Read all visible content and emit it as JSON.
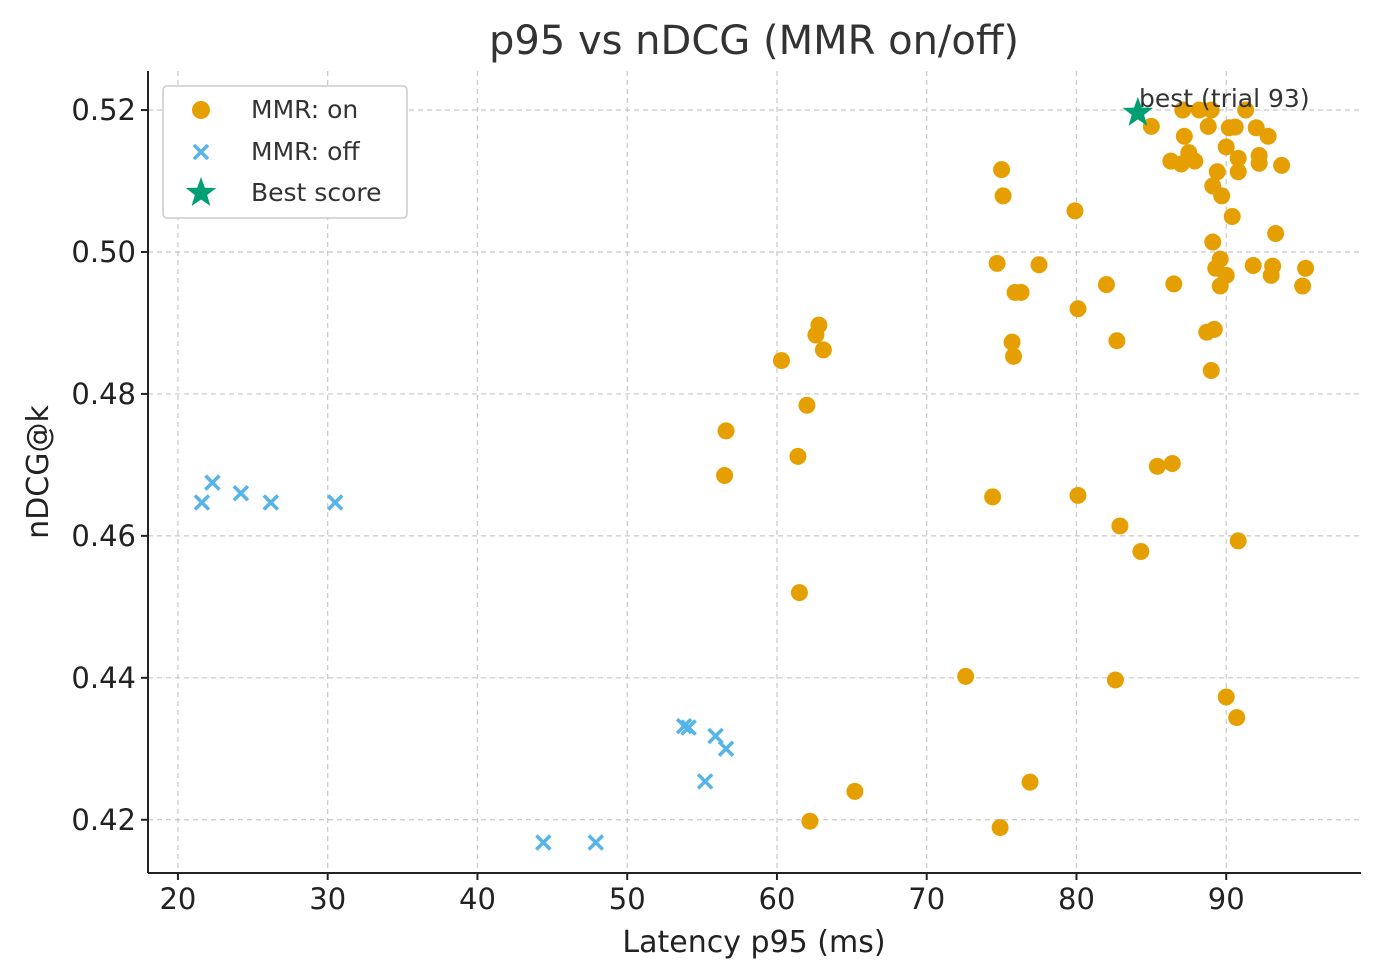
{
  "chart_data": {
    "type": "scatter",
    "title": "p95 vs nDCG (MMR on/off)",
    "xlabel": "Latency p95 (ms)",
    "ylabel": "nDCG@k",
    "xlim": [
      18,
      99
    ],
    "ylim": [
      0.4125,
      0.5255
    ],
    "xticks": [
      20,
      30,
      40,
      50,
      60,
      70,
      80,
      90
    ],
    "yticks": [
      0.42,
      0.44,
      0.46,
      0.48,
      0.5,
      0.52
    ],
    "xtick_labels": [
      "20",
      "30",
      "40",
      "50",
      "60",
      "70",
      "80",
      "90"
    ],
    "ytick_labels": [
      "0.42",
      "0.44",
      "0.46",
      "0.48",
      "0.50",
      "0.52"
    ],
    "grid": true,
    "legend_position": "top-left",
    "colors": {
      "on": "#E69F00",
      "off": "#56B4E9",
      "best": "#009E73"
    },
    "series": [
      {
        "name": "MMR: on",
        "marker": "circle",
        "points": [
          [
            56.6,
            0.4748
          ],
          [
            56.5,
            0.4685
          ],
          [
            60.3,
            0.4847
          ],
          [
            62.0,
            0.4784
          ],
          [
            61.4,
            0.4712
          ],
          [
            62.6,
            0.4883
          ],
          [
            62.8,
            0.4897
          ],
          [
            63.1,
            0.4862
          ],
          [
            61.5,
            0.452
          ],
          [
            62.2,
            0.4198
          ],
          [
            65.2,
            0.424
          ],
          [
            72.6,
            0.4402
          ],
          [
            74.4,
            0.4655
          ],
          [
            74.7,
            0.4984
          ],
          [
            75.0,
            0.5116
          ],
          [
            75.1,
            0.5079
          ],
          [
            75.7,
            0.4873
          ],
          [
            75.8,
            0.4853
          ],
          [
            75.9,
            0.4943
          ],
          [
            76.3,
            0.4943
          ],
          [
            77.5,
            0.4982
          ],
          [
            76.9,
            0.4253
          ],
          [
            74.9,
            0.4189
          ],
          [
            79.9,
            0.5058
          ],
          [
            80.1,
            0.492
          ],
          [
            80.1,
            0.4657
          ],
          [
            82.0,
            0.4954
          ],
          [
            82.7,
            0.4875
          ],
          [
            82.6,
            0.4397
          ],
          [
            82.9,
            0.4614
          ],
          [
            84.3,
            0.4578
          ],
          [
            85.0,
            0.5177
          ],
          [
            85.4,
            0.4698
          ],
          [
            86.3,
            0.5128
          ],
          [
            86.4,
            0.4702
          ],
          [
            86.5,
            0.4955
          ],
          [
            87.0,
            0.5124
          ],
          [
            87.1,
            0.52
          ],
          [
            87.2,
            0.5163
          ],
          [
            87.5,
            0.514
          ],
          [
            87.9,
            0.5128
          ],
          [
            88.2,
            0.52
          ],
          [
            88.8,
            0.5177
          ],
          [
            88.7,
            0.4887
          ],
          [
            89.0,
            0.52
          ],
          [
            89.1,
            0.5014
          ],
          [
            89.0,
            0.4833
          ],
          [
            89.1,
            0.5093
          ],
          [
            89.2,
            0.4891
          ],
          [
            89.3,
            0.4977
          ],
          [
            89.4,
            0.5113
          ],
          [
            89.6,
            0.499
          ],
          [
            89.6,
            0.4952
          ],
          [
            89.7,
            0.5079
          ],
          [
            90.0,
            0.4967
          ],
          [
            90.0,
            0.5148
          ],
          [
            90.0,
            0.4373
          ],
          [
            90.2,
            0.5175
          ],
          [
            90.4,
            0.505
          ],
          [
            90.6,
            0.5176
          ],
          [
            90.8,
            0.5113
          ],
          [
            90.8,
            0.5132
          ],
          [
            90.8,
            0.4593
          ],
          [
            90.7,
            0.4344
          ],
          [
            91.3,
            0.52
          ],
          [
            91.8,
            0.4981
          ],
          [
            92.0,
            0.5175
          ],
          [
            92.2,
            0.5125
          ],
          [
            92.2,
            0.5136
          ],
          [
            92.8,
            0.5163
          ],
          [
            93.0,
            0.4967
          ],
          [
            93.1,
            0.498
          ],
          [
            93.3,
            0.5026
          ],
          [
            93.7,
            0.5122
          ],
          [
            95.1,
            0.4952
          ],
          [
            95.3,
            0.4977
          ]
        ]
      },
      {
        "name": "MMR: off",
        "marker": "x",
        "points": [
          [
            21.6,
            0.4647
          ],
          [
            22.3,
            0.4675
          ],
          [
            24.2,
            0.466
          ],
          [
            26.2,
            0.4647
          ],
          [
            30.5,
            0.4647
          ],
          [
            44.4,
            0.4168
          ],
          [
            47.9,
            0.4168
          ],
          [
            53.8,
            0.4332
          ],
          [
            54.1,
            0.433
          ],
          [
            55.2,
            0.4254
          ],
          [
            55.9,
            0.4318
          ],
          [
            56.6,
            0.43
          ]
        ]
      }
    ],
    "best": {
      "name": "Best score",
      "marker": "star",
      "x": 84.1,
      "y": 0.5196,
      "annotation": "best (trial 93)"
    }
  }
}
